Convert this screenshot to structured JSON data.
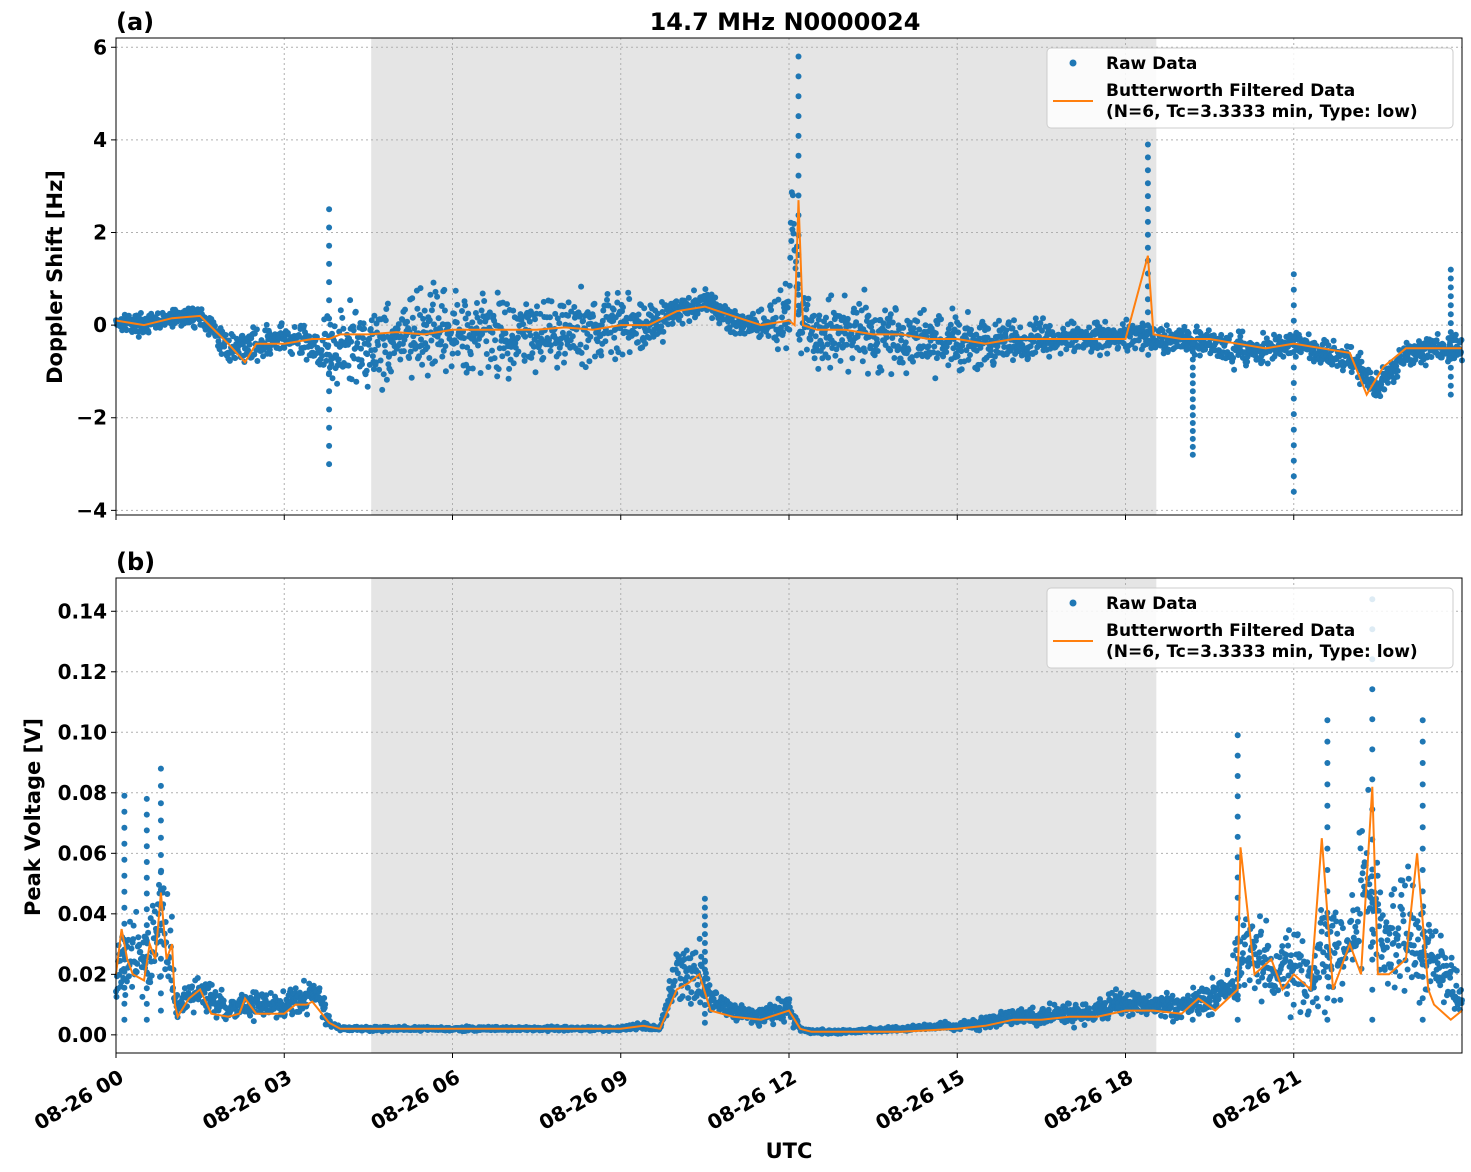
{
  "colors": {
    "raw": "#1f77b4",
    "filtered": "#ff7f0e",
    "shade": "#e5e5e5",
    "grid": "#b0b0b0"
  },
  "chart_data": [
    {
      "panel": "(a)",
      "type": "scatter",
      "title": "14.7 MHz N0000024",
      "xlabel": "",
      "ylabel": "Doppler Shift [Hz]",
      "xlim": [
        0,
        24
      ],
      "ylim": [
        -4.1,
        6.2
      ],
      "yticks": [
        -4,
        -2,
        0,
        2,
        4,
        6
      ],
      "ytick_labels": [
        "−4",
        "−2",
        "0",
        "2",
        "4",
        "6"
      ],
      "grid": true,
      "legend_position": "top-right",
      "shaded_interval_hours": [
        4.55,
        18.55
      ],
      "series": [
        {
          "name": "Raw Data",
          "kind": "scatter",
          "x": [
            0,
            0.5,
            1,
            1.5,
            2,
            2.5,
            3,
            3.5,
            3.8,
            4,
            4.5,
            5,
            5.5,
            6,
            6.5,
            7,
            7.5,
            8,
            8.5,
            9,
            9.5,
            10,
            10.5,
            11,
            11.5,
            12,
            12.05,
            12.2,
            12.5,
            13,
            13.5,
            14,
            14.5,
            15,
            15.5,
            16,
            16.5,
            17,
            17.5,
            18,
            18.5,
            19,
            19.5,
            20,
            20.5,
            21,
            21.5,
            22,
            22.5,
            23,
            23.5,
            24
          ],
          "y": [
            0.1,
            0.0,
            0.15,
            0.2,
            -0.5,
            -0.4,
            -0.3,
            -0.4,
            -0.6,
            -0.5,
            -0.4,
            -0.3,
            -0.2,
            -0.2,
            -0.1,
            -0.2,
            -0.1,
            -0.1,
            -0.1,
            0.0,
            0.0,
            0.3,
            0.5,
            0.1,
            0.0,
            0.2,
            2.5,
            -0.1,
            -0.2,
            -0.1,
            -0.2,
            -0.3,
            -0.3,
            -0.4,
            -0.4,
            -0.4,
            -0.3,
            -0.3,
            -0.3,
            -0.2,
            -0.3,
            -0.3,
            -0.4,
            -0.6,
            -0.5,
            -0.4,
            -0.6,
            -0.7,
            -1.4,
            -0.6,
            -0.5,
            -0.5
          ],
          "spread": [
            0.3,
            0.3,
            0.3,
            0.3,
            0.4,
            0.5,
            0.5,
            0.6,
            1.2,
            1.3,
            1.3,
            1.3,
            1.3,
            1.2,
            1.2,
            1.2,
            1.1,
            1.1,
            1.1,
            1.0,
            0.8,
            0.4,
            0.4,
            0.4,
            0.4,
            1.2,
            1.2,
            1.2,
            1.1,
            1.1,
            1.0,
            1.0,
            0.9,
            0.9,
            0.8,
            0.7,
            0.6,
            0.5,
            0.5,
            0.5,
            0.4,
            0.4,
            0.4,
            0.5,
            0.4,
            0.4,
            0.4,
            0.4,
            0.4,
            0.4,
            0.4,
            0.4
          ],
          "spikes": [
            {
              "x": 3.8,
              "y": [
                -3.0,
                2.5
              ]
            },
            {
              "x": 12.17,
              "y": [
                -0.2,
                5.8
              ]
            },
            {
              "x": 18.4,
              "y": [
                0.0,
                3.9
              ]
            },
            {
              "x": 19.2,
              "y": [
                -2.8,
                -0.4
              ]
            },
            {
              "x": 21.0,
              "y": [
                -3.6,
                1.1
              ]
            },
            {
              "x": 23.8,
              "y": [
                -1.5,
                1.2
              ]
            }
          ]
        },
        {
          "name": "Butterworth Filtered Data\n(N=6, Tc=3.3333 min, Type: low)",
          "kind": "line",
          "x": [
            0,
            0.5,
            1,
            1.5,
            2,
            2.3,
            2.5,
            3,
            3.5,
            3.8,
            4,
            4.5,
            5,
            5.5,
            6,
            6.5,
            7,
            7.5,
            8,
            8.5,
            9,
            9.5,
            10,
            10.5,
            11,
            11.5,
            12,
            12.1,
            12.17,
            12.25,
            12.5,
            13,
            13.5,
            14,
            14.5,
            15,
            15.5,
            16,
            16.5,
            17,
            17.5,
            18,
            18.4,
            18.5,
            19,
            19.5,
            20,
            20.5,
            21,
            21.5,
            22,
            22.3,
            22.6,
            23,
            23.5,
            24
          ],
          "y": [
            0.1,
            0.0,
            0.15,
            0.2,
            -0.4,
            -0.8,
            -0.4,
            -0.4,
            -0.3,
            -0.3,
            -0.2,
            -0.2,
            -0.15,
            -0.2,
            -0.1,
            -0.1,
            -0.1,
            -0.1,
            -0.05,
            -0.1,
            0.0,
            0.0,
            0.3,
            0.4,
            0.2,
            0.0,
            0.1,
            0.0,
            2.7,
            0.0,
            -0.1,
            -0.1,
            -0.2,
            -0.2,
            -0.3,
            -0.3,
            -0.4,
            -0.3,
            -0.3,
            -0.3,
            -0.3,
            -0.3,
            1.5,
            -0.2,
            -0.3,
            -0.3,
            -0.4,
            -0.5,
            -0.4,
            -0.5,
            -0.6,
            -1.5,
            -0.9,
            -0.5,
            -0.5,
            -0.5
          ]
        }
      ]
    },
    {
      "panel": "(b)",
      "type": "scatter",
      "title": "",
      "xlabel": "UTC",
      "ylabel": "Peak Voltage [V]",
      "xlim": [
        0,
        24
      ],
      "ylim": [
        -0.006,
        0.151
      ],
      "yticks": [
        0.0,
        0.02,
        0.04,
        0.06,
        0.08,
        0.1,
        0.12,
        0.14
      ],
      "ytick_labels": [
        "0.00",
        "0.02",
        "0.04",
        "0.06",
        "0.08",
        "0.10",
        "0.12",
        "0.14"
      ],
      "xticks_hours": [
        0,
        3,
        6,
        9,
        12,
        15,
        18,
        21
      ],
      "xtick_labels": [
        "08-26 00",
        "08-26 03",
        "08-26 06",
        "08-26 09",
        "08-26 12",
        "08-26 15",
        "08-26 18",
        "08-26 21"
      ],
      "grid": true,
      "legend_position": "top-right",
      "shaded_interval_hours": [
        4.55,
        18.55
      ],
      "series": [
        {
          "name": "Raw Data",
          "kind": "scatter",
          "x": [
            0,
            0.3,
            0.6,
            0.8,
            1,
            1.1,
            1.3,
            1.5,
            2,
            2.3,
            2.6,
            3,
            3.3,
            3.6,
            3.8,
            4,
            5,
            6,
            7,
            8,
            9,
            9.4,
            9.7,
            10,
            10.2,
            10.4,
            10.6,
            11,
            11.5,
            12,
            12.2,
            12.4,
            13,
            14,
            15,
            15.5,
            16,
            16.5,
            17,
            17.5,
            18,
            18.5,
            19,
            19.5,
            20,
            20.3,
            20.6,
            21,
            21.3,
            21.6,
            22,
            22.3,
            22.6,
            23,
            23.3,
            23.6,
            24
          ],
          "y": [
            0.02,
            0.03,
            0.025,
            0.045,
            0.02,
            0.008,
            0.012,
            0.015,
            0.008,
            0.01,
            0.01,
            0.01,
            0.012,
            0.014,
            0.004,
            0.002,
            0.002,
            0.002,
            0.002,
            0.002,
            0.002,
            0.003,
            0.002,
            0.02,
            0.02,
            0.022,
            0.012,
            0.008,
            0.006,
            0.009,
            0.002,
            0.001,
            0.001,
            0.002,
            0.003,
            0.004,
            0.006,
            0.006,
            0.007,
            0.008,
            0.01,
            0.01,
            0.009,
            0.012,
            0.02,
            0.03,
            0.02,
            0.025,
            0.015,
            0.03,
            0.03,
            0.05,
            0.03,
            0.035,
            0.03,
            0.025,
            0.01
          ],
          "spread": [
            0.015,
            0.02,
            0.02,
            0.03,
            0.02,
            0.005,
            0.007,
            0.01,
            0.005,
            0.006,
            0.006,
            0.006,
            0.008,
            0.008,
            0.003,
            0.001,
            0.001,
            0.001,
            0.001,
            0.001,
            0.001,
            0.002,
            0.001,
            0.012,
            0.014,
            0.018,
            0.006,
            0.005,
            0.004,
            0.007,
            0.001,
            0.001,
            0.001,
            0.001,
            0.002,
            0.003,
            0.004,
            0.004,
            0.005,
            0.006,
            0.007,
            0.007,
            0.006,
            0.008,
            0.015,
            0.025,
            0.015,
            0.02,
            0.012,
            0.025,
            0.025,
            0.04,
            0.025,
            0.03,
            0.025,
            0.02,
            0.008
          ],
          "spikes": [
            {
              "x": 0.15,
              "y": [
                0.005,
                0.079
              ]
            },
            {
              "x": 0.55,
              "y": [
                0.005,
                0.078
              ]
            },
            {
              "x": 0.8,
              "y": [
                0.008,
                0.088
              ]
            },
            {
              "x": 10.5,
              "y": [
                0.004,
                0.045
              ]
            },
            {
              "x": 20.0,
              "y": [
                0.005,
                0.099
              ]
            },
            {
              "x": 21.6,
              "y": [
                0.005,
                0.104
              ]
            },
            {
              "x": 22.4,
              "y": [
                0.005,
                0.144
              ]
            },
            {
              "x": 23.3,
              "y": [
                0.005,
                0.104
              ]
            }
          ]
        },
        {
          "name": "Butterworth Filtered Data\n(N=6, Tc=3.3333 min, Type: low)",
          "kind": "line",
          "x": [
            0,
            0.1,
            0.2,
            0.3,
            0.5,
            0.6,
            0.7,
            0.8,
            0.9,
            1,
            1.05,
            1.1,
            1.3,
            1.5,
            1.7,
            2,
            2.2,
            2.3,
            2.5,
            3,
            3.2,
            3.4,
            3.5,
            3.8,
            4,
            5,
            6,
            7,
            8,
            9,
            9.4,
            9.7,
            10,
            10.2,
            10.4,
            10.6,
            10.8,
            11,
            11.5,
            12,
            12.2,
            12.4,
            13,
            14,
            15,
            15.5,
            16,
            16.5,
            17,
            17.5,
            18,
            18.5,
            19,
            19.3,
            19.6,
            20,
            20.05,
            20.3,
            20.6,
            20.8,
            21,
            21.3,
            21.5,
            21.7,
            22,
            22.2,
            22.4,
            22.5,
            22.7,
            23,
            23.2,
            23.4,
            23.5,
            23.8,
            24
          ],
          "y": [
            0.02,
            0.035,
            0.025,
            0.02,
            0.018,
            0.03,
            0.025,
            0.047,
            0.025,
            0.03,
            0.01,
            0.006,
            0.012,
            0.015,
            0.007,
            0.006,
            0.007,
            0.012,
            0.007,
            0.007,
            0.01,
            0.01,
            0.011,
            0.004,
            0.002,
            0.002,
            0.002,
            0.002,
            0.002,
            0.002,
            0.003,
            0.002,
            0.015,
            0.017,
            0.02,
            0.008,
            0.007,
            0.006,
            0.005,
            0.008,
            0.002,
            0.001,
            0.001,
            0.001,
            0.002,
            0.003,
            0.005,
            0.005,
            0.006,
            0.006,
            0.008,
            0.008,
            0.007,
            0.012,
            0.008,
            0.015,
            0.062,
            0.02,
            0.025,
            0.015,
            0.02,
            0.015,
            0.065,
            0.015,
            0.03,
            0.02,
            0.082,
            0.02,
            0.02,
            0.025,
            0.06,
            0.015,
            0.01,
            0.005,
            0.008
          ]
        }
      ]
    }
  ],
  "legend": {
    "raw_label": "Raw Data",
    "filtered_label_line1": "Butterworth Filtered Data",
    "filtered_label_line2": "(N=6, Tc=3.3333 min, Type: low)"
  }
}
